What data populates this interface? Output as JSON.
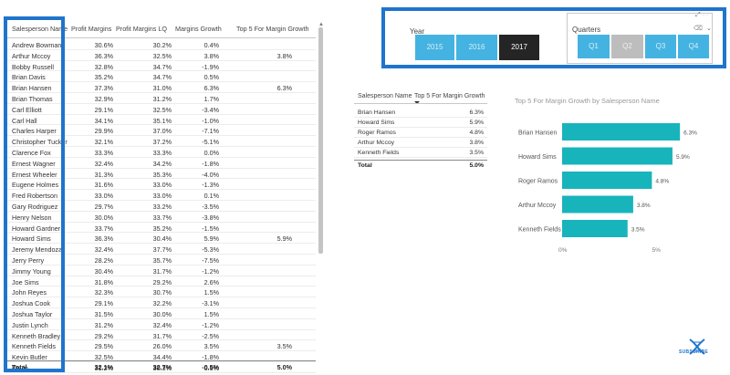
{
  "main_table": {
    "headers": [
      "Salesperson Name",
      "Profit Margins",
      "Profit Margins LQ",
      "Margins Growth",
      "Top 5 For Margin Growth"
    ],
    "rows": [
      [
        "Andrew Bowman",
        "30.6%",
        "30.2%",
        "0.4%",
        ""
      ],
      [
        "Arthur Mccoy",
        "36.3%",
        "32.5%",
        "3.8%",
        "3.8%"
      ],
      [
        "Bobby Russell",
        "32.8%",
        "34.7%",
        "-1.9%",
        ""
      ],
      [
        "Brian Davis",
        "35.2%",
        "34.7%",
        "0.5%",
        ""
      ],
      [
        "Brian Hansen",
        "37.3%",
        "31.0%",
        "6.3%",
        "6.3%"
      ],
      [
        "Brian Thomas",
        "32.9%",
        "31.2%",
        "1.7%",
        ""
      ],
      [
        "Carl Elliott",
        "29.1%",
        "32.5%",
        "-3.4%",
        ""
      ],
      [
        "Carl Hall",
        "34.1%",
        "35.1%",
        "-1.0%",
        ""
      ],
      [
        "Charles Harper",
        "29.9%",
        "37.0%",
        "-7.1%",
        ""
      ],
      [
        "Christopher Tucker",
        "32.1%",
        "37.2%",
        "-5.1%",
        ""
      ],
      [
        "Clarence Fox",
        "33.3%",
        "33.3%",
        "0.0%",
        ""
      ],
      [
        "Ernest Wagner",
        "32.4%",
        "34.2%",
        "-1.8%",
        ""
      ],
      [
        "Ernest Wheeler",
        "31.3%",
        "35.3%",
        "-4.0%",
        ""
      ],
      [
        "Eugene Holmes",
        "31.6%",
        "33.0%",
        "-1.3%",
        ""
      ],
      [
        "Fred Robertson",
        "33.0%",
        "33.0%",
        "0.1%",
        ""
      ],
      [
        "Gary Rodriguez",
        "29.7%",
        "33.2%",
        "-3.5%",
        ""
      ],
      [
        "Henry Nelson",
        "30.0%",
        "33.7%",
        "-3.8%",
        ""
      ],
      [
        "Howard Gardner",
        "33.7%",
        "35.2%",
        "-1.5%",
        ""
      ],
      [
        "Howard Sims",
        "36.3%",
        "30.4%",
        "5.9%",
        "5.9%"
      ],
      [
        "Jeremy Mendoza",
        "32.4%",
        "37.7%",
        "-5.3%",
        ""
      ],
      [
        "Jerry Perry",
        "28.2%",
        "35.7%",
        "-7.5%",
        ""
      ],
      [
        "Jimmy Young",
        "30.4%",
        "31.7%",
        "-1.2%",
        ""
      ],
      [
        "Joe Sims",
        "31.8%",
        "29.2%",
        "2.6%",
        ""
      ],
      [
        "John Reyes",
        "32.3%",
        "30.7%",
        "1.5%",
        ""
      ],
      [
        "Joshua Cook",
        "29.1%",
        "32.2%",
        "-3.1%",
        ""
      ],
      [
        "Joshua Taylor",
        "31.5%",
        "30.0%",
        "1.5%",
        ""
      ],
      [
        "Justin Lynch",
        "31.2%",
        "32.4%",
        "-1.2%",
        ""
      ],
      [
        "Kenneth Bradley",
        "29.2%",
        "31.7%",
        "-2.5%",
        ""
      ],
      [
        "Kenneth Fields",
        "29.5%",
        "26.0%",
        "3.5%",
        "3.5%"
      ],
      [
        "Kevin Butler",
        "32.5%",
        "34.4%",
        "-1.8%",
        ""
      ],
      [
        "Kevin ...",
        "31.2%",
        "30.3%",
        "0.9%",
        ""
      ]
    ],
    "total": [
      "Total",
      "32.1%",
      "32.7%",
      "-0.5%",
      "5.0%"
    ]
  },
  "year_slicer": {
    "title": "Year",
    "options": [
      "2015",
      "2016",
      "2017"
    ],
    "selected": "2017"
  },
  "quarter_slicer": {
    "title": "Quarters",
    "options": [
      "Q1",
      "Q2",
      "Q3",
      "Q4"
    ],
    "selected": "Q2",
    "toolbar_glyphs": "⤢  ⋯",
    "eraser_glyph": "⌫",
    "chevron_glyph": "⌄"
  },
  "top5_table": {
    "headers": [
      "Salesperson Name",
      "Top 5 For Margin Growth"
    ],
    "rows": [
      [
        "Brian Hansen",
        "6.3%"
      ],
      [
        "Howard Sims",
        "5.9%"
      ],
      [
        "Roger Ramos",
        "4.8%"
      ],
      [
        "Arthur Mccoy",
        "3.8%"
      ],
      [
        "Kenneth Fields",
        "3.5%"
      ]
    ],
    "total": [
      "Total",
      "5.0%"
    ]
  },
  "chart_data": {
    "type": "bar",
    "orientation": "horizontal",
    "title": "Top 5 For Margin Growth by Salesperson Name",
    "categories": [
      "Brian Hansen",
      "Howard Sims",
      "Roger Ramos",
      "Arthur Mccoy",
      "Kenneth Fields"
    ],
    "values": [
      6.3,
      5.9,
      4.8,
      3.8,
      3.5
    ],
    "data_labels": [
      "6.3%",
      "5.9%",
      "4.8%",
      "3.8%",
      "3.5%"
    ],
    "x_ticks": [
      "0%",
      "5%"
    ],
    "xlim": [
      0,
      7.5
    ],
    "bar_color": "#18b4bc"
  },
  "logo": {
    "text": "SUBSCRIBE",
    "color": "#1f74cc"
  },
  "colors": {
    "accent": "#1f74cc",
    "slicer_button": "#44b3e1",
    "selected_year": "#252525",
    "selected_quarter": "#bdbdbd"
  }
}
